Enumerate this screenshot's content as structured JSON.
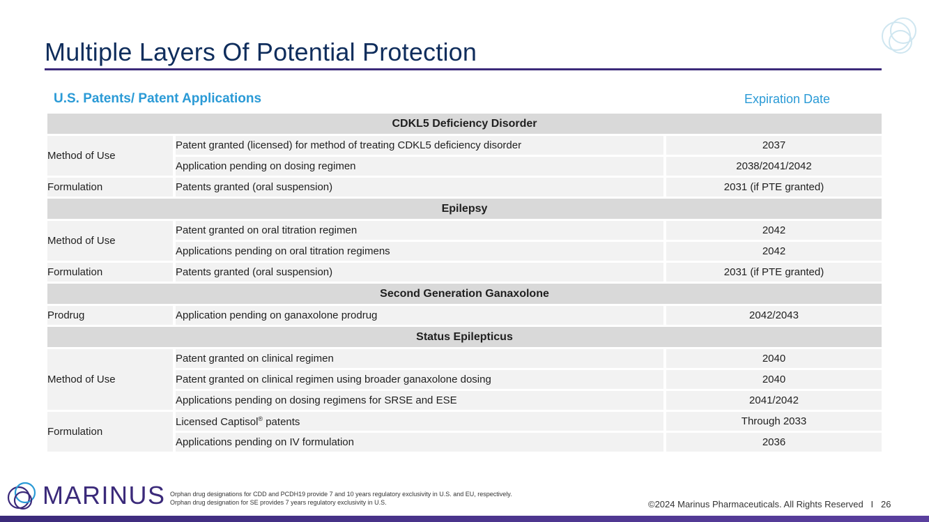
{
  "title": "Multiple Layers Of Potential Protection",
  "section_heading": "U.S. Patents/ Patent Applications",
  "expiration_heading": "Expiration Date",
  "groups": [
    {
      "name": "CDKL5 Deficiency Disorder",
      "rows": [
        {
          "category": "Method of Use",
          "description": "Patent granted (licensed) for method of treating CDKL5 deficiency disorder",
          "expiration": "2037"
        },
        {
          "description": "Application pending on dosing regimen",
          "expiration": "2038/2041/2042"
        },
        {
          "category": "Formulation",
          "description": "Patents granted (oral suspension)",
          "expiration": "2031 (if PTE granted)"
        }
      ]
    },
    {
      "name": "Epilepsy",
      "rows": [
        {
          "category": "Method of Use",
          "description": "Patent granted on oral titration regimen",
          "expiration": "2042"
        },
        {
          "description": "Applications pending on oral titration regimens",
          "expiration": "2042"
        },
        {
          "category": "Formulation",
          "description": "Patents granted (oral suspension)",
          "expiration": "2031 (if PTE granted)"
        }
      ]
    },
    {
      "name": "Second Generation Ganaxolone",
      "rows": [
        {
          "category": "Prodrug",
          "description": "Application pending on ganaxolone prodrug",
          "expiration": "2042/2043"
        }
      ]
    },
    {
      "name": "Status Epilepticus",
      "rows": [
        {
          "category": "Method of Use",
          "description": "Patent granted on clinical regimen",
          "expiration": "2040"
        },
        {
          "description": "Patent granted on clinical regimen using broader ganaxolone dosing",
          "expiration": "2040"
        },
        {
          "description": "Applications pending on dosing regimens for SRSE and ESE",
          "expiration": "2041/2042"
        },
        {
          "category": "Formulation",
          "description": "Licensed Captisol",
          "description_sup": "®",
          "description_tail": " patents",
          "expiration": "Through 2033"
        },
        {
          "description": "Applications pending on IV formulation",
          "expiration": "2036"
        }
      ]
    }
  ],
  "footer": {
    "logo_text": "MARINUS",
    "footnote_1": "Orphan drug designations for CDD and PCDH19 provide 7 and 10 years regulatory exclusivity in U.S. and EU, respectively.",
    "footnote_2": "Orphan drug designation for SE provides 7 years regulatory exclusivity in U.S.",
    "copyright": "©2024 Marinus Pharmaceuticals. All Rights Reserved   I   26"
  },
  "colors": {
    "title": "#0f2d5c",
    "accent_blue": "#2a9ad6",
    "brand_purple": "#3b2a7a",
    "group_header_bg": "#d9d9d9",
    "row_bg": "#f2f2f2"
  },
  "icons": [
    "overlapping-circles-logo-icon",
    "marinus-logo-icon"
  ]
}
